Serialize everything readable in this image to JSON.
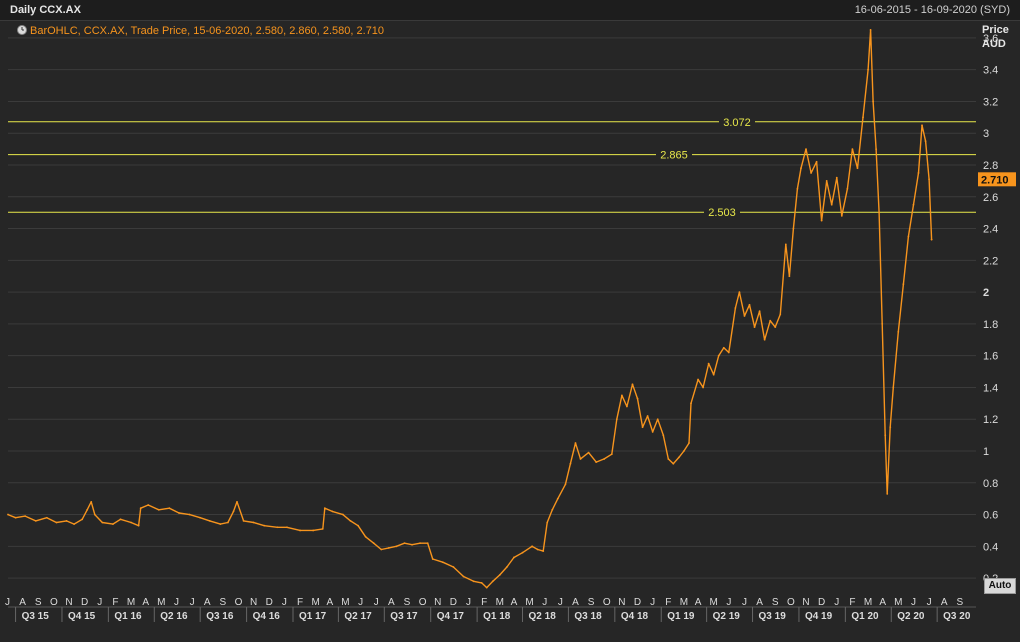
{
  "header": {
    "title": "Daily CCX.AX",
    "date_range": "16-06-2015 - 16-09-2020 (SYD)"
  },
  "legend": {
    "text": "BarOHLC, CCX.AX, Trade Price, 15-06-2020, 2.580, 2.860, 2.580, 2.710"
  },
  "axis": {
    "unit_line1": "Price",
    "unit_line2": "AUD"
  },
  "auto_button": "Auto",
  "colors": {
    "background": "#262626",
    "grid": "#3b3b3b",
    "series": "#f7941d",
    "hline": "#e8e84a",
    "legend_text": "#f7941d",
    "axis_text": "#dcdcdc"
  },
  "chart_data": {
    "type": "line",
    "title": "Daily CCX.AX",
    "ylabel": "Price AUD",
    "ylim": [
      0.1,
      3.7
    ],
    "xlim": [
      "2015-06-16",
      "2020-09-16"
    ],
    "y_ticks": [
      "0.2",
      "0.4",
      "0.6",
      "0.8",
      "1",
      "1.2",
      "1.4",
      "1.6",
      "1.8",
      "2",
      "2.2",
      "2.4",
      "2.6",
      "2.8",
      "3",
      "3.2",
      "3.4",
      "3.6"
    ],
    "grid": true,
    "last_price": "2.710",
    "hlines": [
      {
        "value": 3.072,
        "label": "3.072"
      },
      {
        "value": 2.865,
        "label": "2.865"
      },
      {
        "value": 2.503,
        "label": "2.503"
      }
    ],
    "month_labels": [
      "J",
      "A",
      "S",
      "O",
      "N",
      "D",
      "J",
      "F",
      "M",
      "A",
      "M",
      "J",
      "J",
      "A",
      "S",
      "O",
      "N",
      "D",
      "J",
      "F",
      "M",
      "A",
      "M",
      "J",
      "J",
      "A",
      "S",
      "O",
      "N",
      "D",
      "J",
      "F",
      "M",
      "A",
      "M",
      "J",
      "J",
      "A",
      "S",
      "O",
      "N",
      "D",
      "J",
      "F",
      "M",
      "A",
      "M",
      "J",
      "J",
      "A",
      "S",
      "O",
      "N",
      "D",
      "J",
      "F",
      "M",
      "A",
      "M",
      "J",
      "J",
      "A",
      "S"
    ],
    "quarter_labels": [
      "Q3 15",
      "Q4 15",
      "Q1 16",
      "Q2 16",
      "Q3 16",
      "Q4 16",
      "Q1 17",
      "Q2 17",
      "Q3 17",
      "Q4 17",
      "Q1 18",
      "Q2 18",
      "Q3 18",
      "Q4 18",
      "Q1 19",
      "Q2 19",
      "Q3 19",
      "Q4 19",
      "Q1 20",
      "Q2 20",
      "Q3 20"
    ],
    "series": [
      {
        "values": [
          [
            "2015-06-16",
            0.6
          ],
          [
            "2015-07-01",
            0.58
          ],
          [
            "2015-07-20",
            0.59
          ],
          [
            "2015-08-10",
            0.56
          ],
          [
            "2015-09-01",
            0.58
          ],
          [
            "2015-09-20",
            0.55
          ],
          [
            "2015-10-10",
            0.56
          ],
          [
            "2015-10-25",
            0.54
          ],
          [
            "2015-11-10",
            0.57
          ],
          [
            "2015-11-20",
            0.63
          ],
          [
            "2015-11-28",
            0.68
          ],
          [
            "2015-12-05",
            0.6
          ],
          [
            "2015-12-20",
            0.55
          ],
          [
            "2016-01-10",
            0.54
          ],
          [
            "2016-01-25",
            0.57
          ],
          [
            "2016-02-15",
            0.55
          ],
          [
            "2016-03-01",
            0.53
          ],
          [
            "2016-03-05",
            0.64
          ],
          [
            "2016-03-20",
            0.66
          ],
          [
            "2016-04-10",
            0.63
          ],
          [
            "2016-05-01",
            0.64
          ],
          [
            "2016-05-20",
            0.61
          ],
          [
            "2016-06-10",
            0.6
          ],
          [
            "2016-07-01",
            0.58
          ],
          [
            "2016-07-20",
            0.56
          ],
          [
            "2016-08-10",
            0.54
          ],
          [
            "2016-08-25",
            0.55
          ],
          [
            "2016-09-05",
            0.62
          ],
          [
            "2016-09-12",
            0.68
          ],
          [
            "2016-09-25",
            0.56
          ],
          [
            "2016-10-15",
            0.55
          ],
          [
            "2016-11-05",
            0.53
          ],
          [
            "2016-12-01",
            0.52
          ],
          [
            "2016-12-20",
            0.52
          ],
          [
            "2017-01-15",
            0.5
          ],
          [
            "2017-02-10",
            0.5
          ],
          [
            "2017-03-01",
            0.51
          ],
          [
            "2017-03-05",
            0.64
          ],
          [
            "2017-03-20",
            0.62
          ],
          [
            "2017-04-10",
            0.6
          ],
          [
            "2017-04-25",
            0.56
          ],
          [
            "2017-05-10",
            0.53
          ],
          [
            "2017-05-25",
            0.46
          ],
          [
            "2017-06-10",
            0.42
          ],
          [
            "2017-06-25",
            0.38
          ],
          [
            "2017-07-10",
            0.39
          ],
          [
            "2017-07-25",
            0.4
          ],
          [
            "2017-08-10",
            0.42
          ],
          [
            "2017-08-25",
            0.41
          ],
          [
            "2017-09-10",
            0.42
          ],
          [
            "2017-09-25",
            0.42
          ],
          [
            "2017-10-05",
            0.32
          ],
          [
            "2017-10-25",
            0.3
          ],
          [
            "2017-11-15",
            0.27
          ],
          [
            "2017-12-05",
            0.21
          ],
          [
            "2017-12-25",
            0.18
          ],
          [
            "2018-01-10",
            0.17
          ],
          [
            "2018-01-20",
            0.14
          ],
          [
            "2018-02-01",
            0.18
          ],
          [
            "2018-02-15",
            0.22
          ],
          [
            "2018-03-01",
            0.27
          ],
          [
            "2018-03-15",
            0.33
          ],
          [
            "2018-04-01",
            0.36
          ],
          [
            "2018-04-20",
            0.4
          ],
          [
            "2018-05-01",
            0.38
          ],
          [
            "2018-05-12",
            0.37
          ],
          [
            "2018-05-20",
            0.55
          ],
          [
            "2018-05-30",
            0.63
          ],
          [
            "2018-06-10",
            0.7
          ],
          [
            "2018-06-25",
            0.79
          ],
          [
            "2018-07-05",
            0.92
          ],
          [
            "2018-07-15",
            1.05
          ],
          [
            "2018-07-25",
            0.95
          ],
          [
            "2018-08-10",
            0.99
          ],
          [
            "2018-08-25",
            0.93
          ],
          [
            "2018-09-10",
            0.95
          ],
          [
            "2018-09-25",
            0.98
          ],
          [
            "2018-10-05",
            1.2
          ],
          [
            "2018-10-15",
            1.35
          ],
          [
            "2018-10-25",
            1.28
          ],
          [
            "2018-11-05",
            1.42
          ],
          [
            "2018-11-15",
            1.33
          ],
          [
            "2018-11-25",
            1.15
          ],
          [
            "2018-12-05",
            1.22
          ],
          [
            "2018-12-15",
            1.12
          ],
          [
            "2018-12-25",
            1.2
          ],
          [
            "2019-01-05",
            1.1
          ],
          [
            "2019-01-15",
            0.95
          ],
          [
            "2019-01-25",
            0.92
          ],
          [
            "2019-02-05",
            0.96
          ],
          [
            "2019-02-15",
            1.0
          ],
          [
            "2019-02-25",
            1.05
          ],
          [
            "2019-03-01",
            1.3
          ],
          [
            "2019-03-15",
            1.45
          ],
          [
            "2019-03-25",
            1.4
          ],
          [
            "2019-04-05",
            1.55
          ],
          [
            "2019-04-15",
            1.48
          ],
          [
            "2019-04-25",
            1.6
          ],
          [
            "2019-05-05",
            1.65
          ],
          [
            "2019-05-15",
            1.62
          ],
          [
            "2019-05-28",
            1.9
          ],
          [
            "2019-06-05",
            2.0
          ],
          [
            "2019-06-15",
            1.85
          ],
          [
            "2019-06-25",
            1.92
          ],
          [
            "2019-07-05",
            1.78
          ],
          [
            "2019-07-15",
            1.88
          ],
          [
            "2019-07-25",
            1.7
          ],
          [
            "2019-08-05",
            1.82
          ],
          [
            "2019-08-15",
            1.78
          ],
          [
            "2019-08-25",
            1.86
          ],
          [
            "2019-09-05",
            2.3
          ],
          [
            "2019-09-12",
            2.1
          ],
          [
            "2019-09-20",
            2.4
          ],
          [
            "2019-09-28",
            2.65
          ],
          [
            "2019-10-05",
            2.78
          ],
          [
            "2019-10-15",
            2.9
          ],
          [
            "2019-10-25",
            2.75
          ],
          [
            "2019-11-05",
            2.82
          ],
          [
            "2019-11-15",
            2.45
          ],
          [
            "2019-11-25",
            2.7
          ],
          [
            "2019-12-05",
            2.55
          ],
          [
            "2019-12-15",
            2.72
          ],
          [
            "2019-12-25",
            2.48
          ],
          [
            "2020-01-05",
            2.65
          ],
          [
            "2020-01-15",
            2.9
          ],
          [
            "2020-01-25",
            2.78
          ],
          [
            "2020-02-05",
            3.1
          ],
          [
            "2020-02-15",
            3.4
          ],
          [
            "2020-02-20",
            3.65
          ],
          [
            "2020-02-25",
            3.2
          ],
          [
            "2020-03-02",
            2.9
          ],
          [
            "2020-03-08",
            2.5
          ],
          [
            "2020-03-14",
            1.8
          ],
          [
            "2020-03-20",
            1.1
          ],
          [
            "2020-03-24",
            0.73
          ],
          [
            "2020-03-30",
            1.15
          ],
          [
            "2020-04-05",
            1.4
          ],
          [
            "2020-04-15",
            1.75
          ],
          [
            "2020-04-25",
            2.05
          ],
          [
            "2020-05-05",
            2.35
          ],
          [
            "2020-05-15",
            2.55
          ],
          [
            "2020-05-25",
            2.75
          ],
          [
            "2020-06-01",
            3.05
          ],
          [
            "2020-06-08",
            2.95
          ],
          [
            "2020-06-15",
            2.71
          ],
          [
            "2020-06-20",
            2.33
          ]
        ]
      }
    ]
  }
}
